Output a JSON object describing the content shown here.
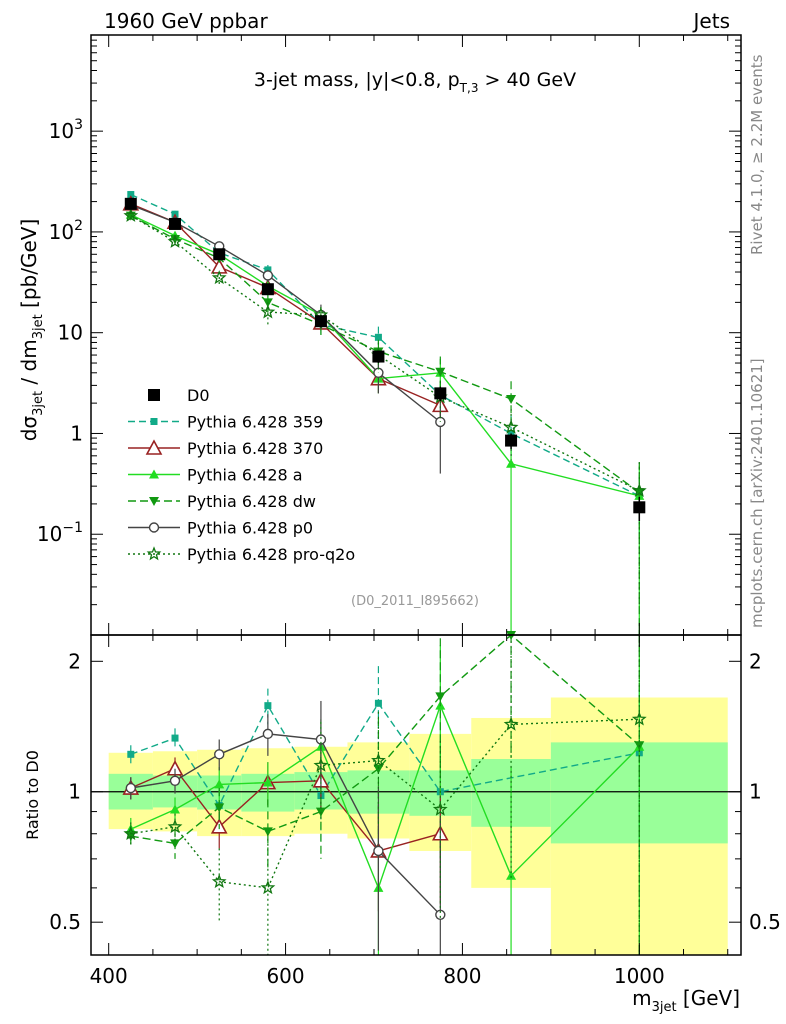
{
  "header": {
    "left": "1960 GeV ppbar",
    "right": "Jets"
  },
  "side_labels": {
    "rivet": "Rivet 4.1.0, ≥ 2.2M events",
    "mcplots": "mcplots.cern.ch [arXiv:2401.10621]"
  },
  "chart_data": {
    "type": "line",
    "title": "3-jet mass, |y|<0.8, p_T,3 > 40 GeV",
    "analysis_id": "(D0_2011_I895662)",
    "xlabel": "m_3jet [GeV]",
    "ylabel": "dσ_3jet / dm_3jet [pb/GeV]",
    "ratio_ylabel": "Ratio to D0",
    "xlim": [
      380,
      1115
    ],
    "ylim": [
      0.01,
      9000
    ],
    "yscale": "log",
    "ratio_ylim": [
      0.42,
      2.3
    ],
    "ratio_yscale": "log",
    "x_ticks": [
      "400",
      "600",
      "800",
      "1000"
    ],
    "y_ticks": [
      "10^3",
      "10^2",
      "10",
      "1",
      "10^-1"
    ],
    "ratio_ticks": [
      "2",
      "1",
      "0.5"
    ],
    "legend_position": "middle-left",
    "data": {
      "name": "D0",
      "x": [
        425,
        475,
        525,
        580,
        640,
        705,
        775,
        855,
        1000
      ],
      "y": [
        190,
        120,
        60,
        27,
        13,
        5.8,
        2.5,
        0.85,
        0.185
      ],
      "err_low": [
        20,
        12,
        6,
        3,
        1.5,
        0.8,
        0.4,
        0.15,
        0.05
      ],
      "err_high": [
        20,
        12,
        6,
        3,
        1.5,
        0.8,
        0.4,
        0.15,
        0.05
      ],
      "bins": [
        [
          400,
          450
        ],
        [
          450,
          500
        ],
        [
          500,
          550
        ],
        [
          550,
          610
        ],
        [
          610,
          670
        ],
        [
          670,
          740
        ],
        [
          740,
          810
        ],
        [
          810,
          900
        ],
        [
          900,
          1100
        ]
      ],
      "band_inner": [
        [
          0.91,
          1.1
        ],
        [
          0.92,
          1.09
        ],
        [
          0.91,
          1.09
        ],
        [
          0.9,
          1.1
        ],
        [
          0.91,
          1.11
        ],
        [
          0.89,
          1.12
        ],
        [
          0.88,
          1.12
        ],
        [
          0.83,
          1.19
        ],
        [
          0.76,
          1.3
        ]
      ],
      "band_outer": [
        [
          0.82,
          1.23
        ],
        [
          0.81,
          1.24
        ],
        [
          0.79,
          1.25
        ],
        [
          0.79,
          1.26
        ],
        [
          0.8,
          1.27
        ],
        [
          0.78,
          1.3
        ],
        [
          0.73,
          1.36
        ],
        [
          0.6,
          1.48
        ],
        [
          0.42,
          1.65
        ]
      ]
    },
    "series": [
      {
        "name": "Pythia 6.428 359",
        "color": "#11aa88",
        "dash": "7,4",
        "marker": "square-small",
        "x": [
          425,
          475,
          525,
          580,
          640,
          705,
          775,
          855,
          1000
        ],
        "y": [
          235,
          150,
          62,
          42,
          12,
          9,
          2.4,
          1.0,
          0.24
        ],
        "err": [
          18,
          12,
          6,
          5,
          2.5,
          2.5,
          0.7,
          0.5,
          0.15
        ],
        "ratio": [
          1.22,
          1.33,
          0.93,
          1.58,
          0.98,
          1.6,
          1.0,
          null,
          1.23
        ],
        "ratio_err": [
          0.06,
          0.07,
          0.08,
          0.15,
          0.22,
          0.35,
          0.3,
          null,
          0.5
        ]
      },
      {
        "name": "Pythia 6.428 370",
        "color": "#992222",
        "dash": "",
        "marker": "triangle-open",
        "x": [
          425,
          475,
          525,
          580,
          640,
          705,
          775
        ],
        "y": [
          190,
          125,
          45,
          28,
          12.5,
          3.5,
          1.9
        ],
        "err": [
          15,
          10,
          5,
          3,
          2,
          1,
          0.6
        ],
        "ratio": [
          1.02,
          1.13,
          0.83,
          1.05,
          1.06,
          0.73,
          0.8
        ],
        "ratio_err": [
          0.06,
          0.07,
          0.09,
          0.12,
          0.18,
          0.2,
          0.25
        ]
      },
      {
        "name": "Pythia 6.428 a",
        "color": "#22dd22",
        "dash": "",
        "marker": "triangle-up",
        "x": [
          425,
          475,
          525,
          580,
          640,
          705,
          775,
          855,
          1000
        ],
        "y": [
          148,
          92,
          60,
          29,
          15,
          3.5,
          4.0,
          0.5,
          0.24
        ],
        "err": [
          12,
          8,
          6,
          4,
          3,
          1,
          1.5,
          0.5,
          0.24
        ],
        "ratio": [
          0.82,
          0.91,
          1.04,
          1.05,
          1.27,
          0.6,
          1.58,
          0.64,
          1.27
        ],
        "ratio_err": [
          0.05,
          0.06,
          0.1,
          0.12,
          0.2,
          0.22,
          0.6,
          0.5,
          1.0
        ]
      },
      {
        "name": "Pythia 6.428 dw",
        "color": "#119911",
        "dash": "8,4",
        "marker": "triangle-down",
        "x": [
          425,
          475,
          525,
          580,
          640,
          705,
          775,
          855,
          1000
        ],
        "y": [
          145,
          85,
          55,
          20,
          12,
          6.5,
          4.1,
          2.2,
          0.26
        ],
        "err": [
          12,
          8,
          6,
          4,
          2.5,
          2,
          1.7,
          1.1,
          0.26
        ],
        "ratio": [
          0.79,
          0.76,
          0.92,
          0.81,
          0.9,
          1.13,
          1.66,
          2.4,
          1.28
        ],
        "ratio_err": [
          0.05,
          0.06,
          0.1,
          0.15,
          0.2,
          0.35,
          0.6,
          1.2,
          1.1
        ]
      },
      {
        "name": "Pythia 6.428 p0",
        "color": "#444444",
        "dash": "",
        "marker": "circle-open",
        "x": [
          425,
          475,
          525,
          580,
          640,
          705,
          775
        ],
        "y": [
          185,
          125,
          72,
          37,
          15,
          4.0,
          1.3
        ],
        "err": [
          15,
          10,
          7,
          5,
          4,
          1.5,
          0.9
        ],
        "ratio": [
          1.02,
          1.06,
          1.22,
          1.36,
          1.32,
          0.73,
          0.52
        ],
        "ratio_err": [
          0.06,
          0.07,
          0.1,
          0.15,
          0.3,
          0.3,
          0.35
        ]
      },
      {
        "name": "Pythia 6.428 pro-q2o",
        "color": "#117711",
        "dash": "2,3",
        "marker": "star",
        "x": [
          425,
          475,
          525,
          580,
          640,
          705,
          775,
          855,
          1000
        ],
        "y": [
          145,
          80,
          35,
          16,
          15,
          6.0,
          2.3,
          1.15,
          0.27
        ],
        "err": [
          12,
          8,
          5,
          4,
          3,
          2,
          1,
          0.6,
          0.25
        ],
        "ratio": [
          0.8,
          0.83,
          0.62,
          0.6,
          1.15,
          1.18,
          0.91,
          1.43,
          1.47
        ],
        "ratio_err": [
          0.05,
          0.06,
          0.12,
          0.2,
          0.3,
          0.35,
          0.4,
          0.8,
          1.2
        ]
      }
    ]
  }
}
